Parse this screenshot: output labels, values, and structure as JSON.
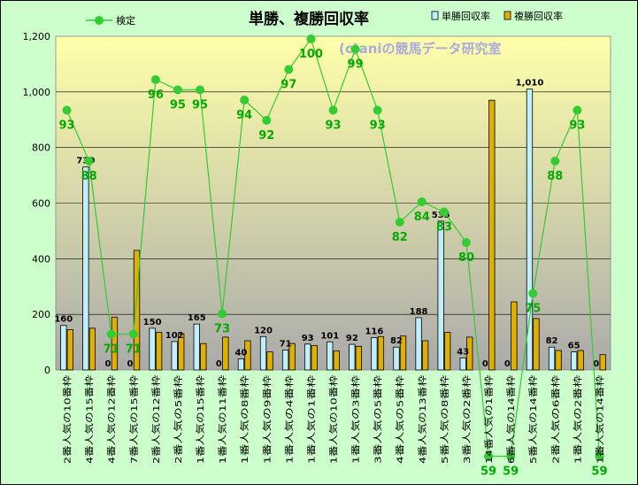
{
  "chart_data": {
    "type": "bar",
    "title": "単勝、複勝回収率",
    "watermark": "(c)aniの競馬データ研究室",
    "ylim": [
      0,
      1200
    ],
    "yticks": [
      0,
      200,
      400,
      600,
      800,
      1000,
      1200
    ],
    "ytick_labels": [
      "0",
      "200",
      "400",
      "600",
      "800",
      "1,000",
      "1,200"
    ],
    "grid": true,
    "legend_placement": "top",
    "colors": {
      "frame_background": "#ccffcc",
      "plot_top": "#ffffaa",
      "plot_bottom": "#aaaaaa",
      "tan_fill": "#c0f0ff",
      "fuku_fill": "#e0b000",
      "line": "#33cc33",
      "line_label": "#00aa00"
    },
    "categories": [
      "2番人気の10番枠",
      "4番人気の15番枠",
      "4番人気の12番枠",
      "7番人気の15番枠",
      "2番人気の12番枠",
      "2番人気の5番枠",
      "1番人気の15番枠",
      "1番人気の11番枠",
      "1番人気の8番枠",
      "1番人気の9番枠",
      "1番人気の4番枠",
      "1番人気の1番枠",
      "1番人気の10番枠",
      "1番人気の3番枠",
      "3番人気の5番枠",
      "4番人気の5番枠",
      "4番人気の13番枠",
      "5番人気の8番枠",
      "3番人気の2番枠",
      "14番人気の1番枠",
      "6番人気の14番枠",
      "5番人気の14番枠",
      "2番人気の6番枠",
      "1番人気の2番枠",
      "1番人気の14番枠"
    ],
    "series": [
      {
        "name": "単勝回収率",
        "values": [
          160,
          730,
          0,
          0,
          150,
          102,
          165,
          0,
          40,
          120,
          71,
          93,
          101,
          92,
          116,
          82,
          188,
          535,
          43,
          0,
          0,
          1010,
          82,
          65,
          0
        ],
        "labels": [
          "160",
          "730",
          "0",
          "0",
          "150",
          "102",
          "165",
          "0",
          "40",
          "120",
          "71",
          "93",
          "101",
          "92",
          "116",
          "82",
          "188",
          "535",
          "43",
          "0",
          "0",
          "1,010",
          "82",
          "65",
          "0"
        ]
      },
      {
        "name": "複勝回収率",
        "values": [
          145,
          150,
          190,
          430,
          135,
          130,
          95,
          118,
          105,
          65,
          95,
          88,
          68,
          85,
          120,
          122,
          105,
          135,
          118,
          970,
          245,
          185,
          70,
          70,
          55
        ]
      },
      {
        "name": "検定",
        "values": [
          93,
          88,
          71,
          71,
          96,
          95,
          95,
          73,
          94,
          92,
          97,
          100,
          93,
          99,
          93,
          82,
          84,
          83,
          80,
          59,
          59,
          75,
          88,
          93,
          59
        ]
      }
    ]
  }
}
